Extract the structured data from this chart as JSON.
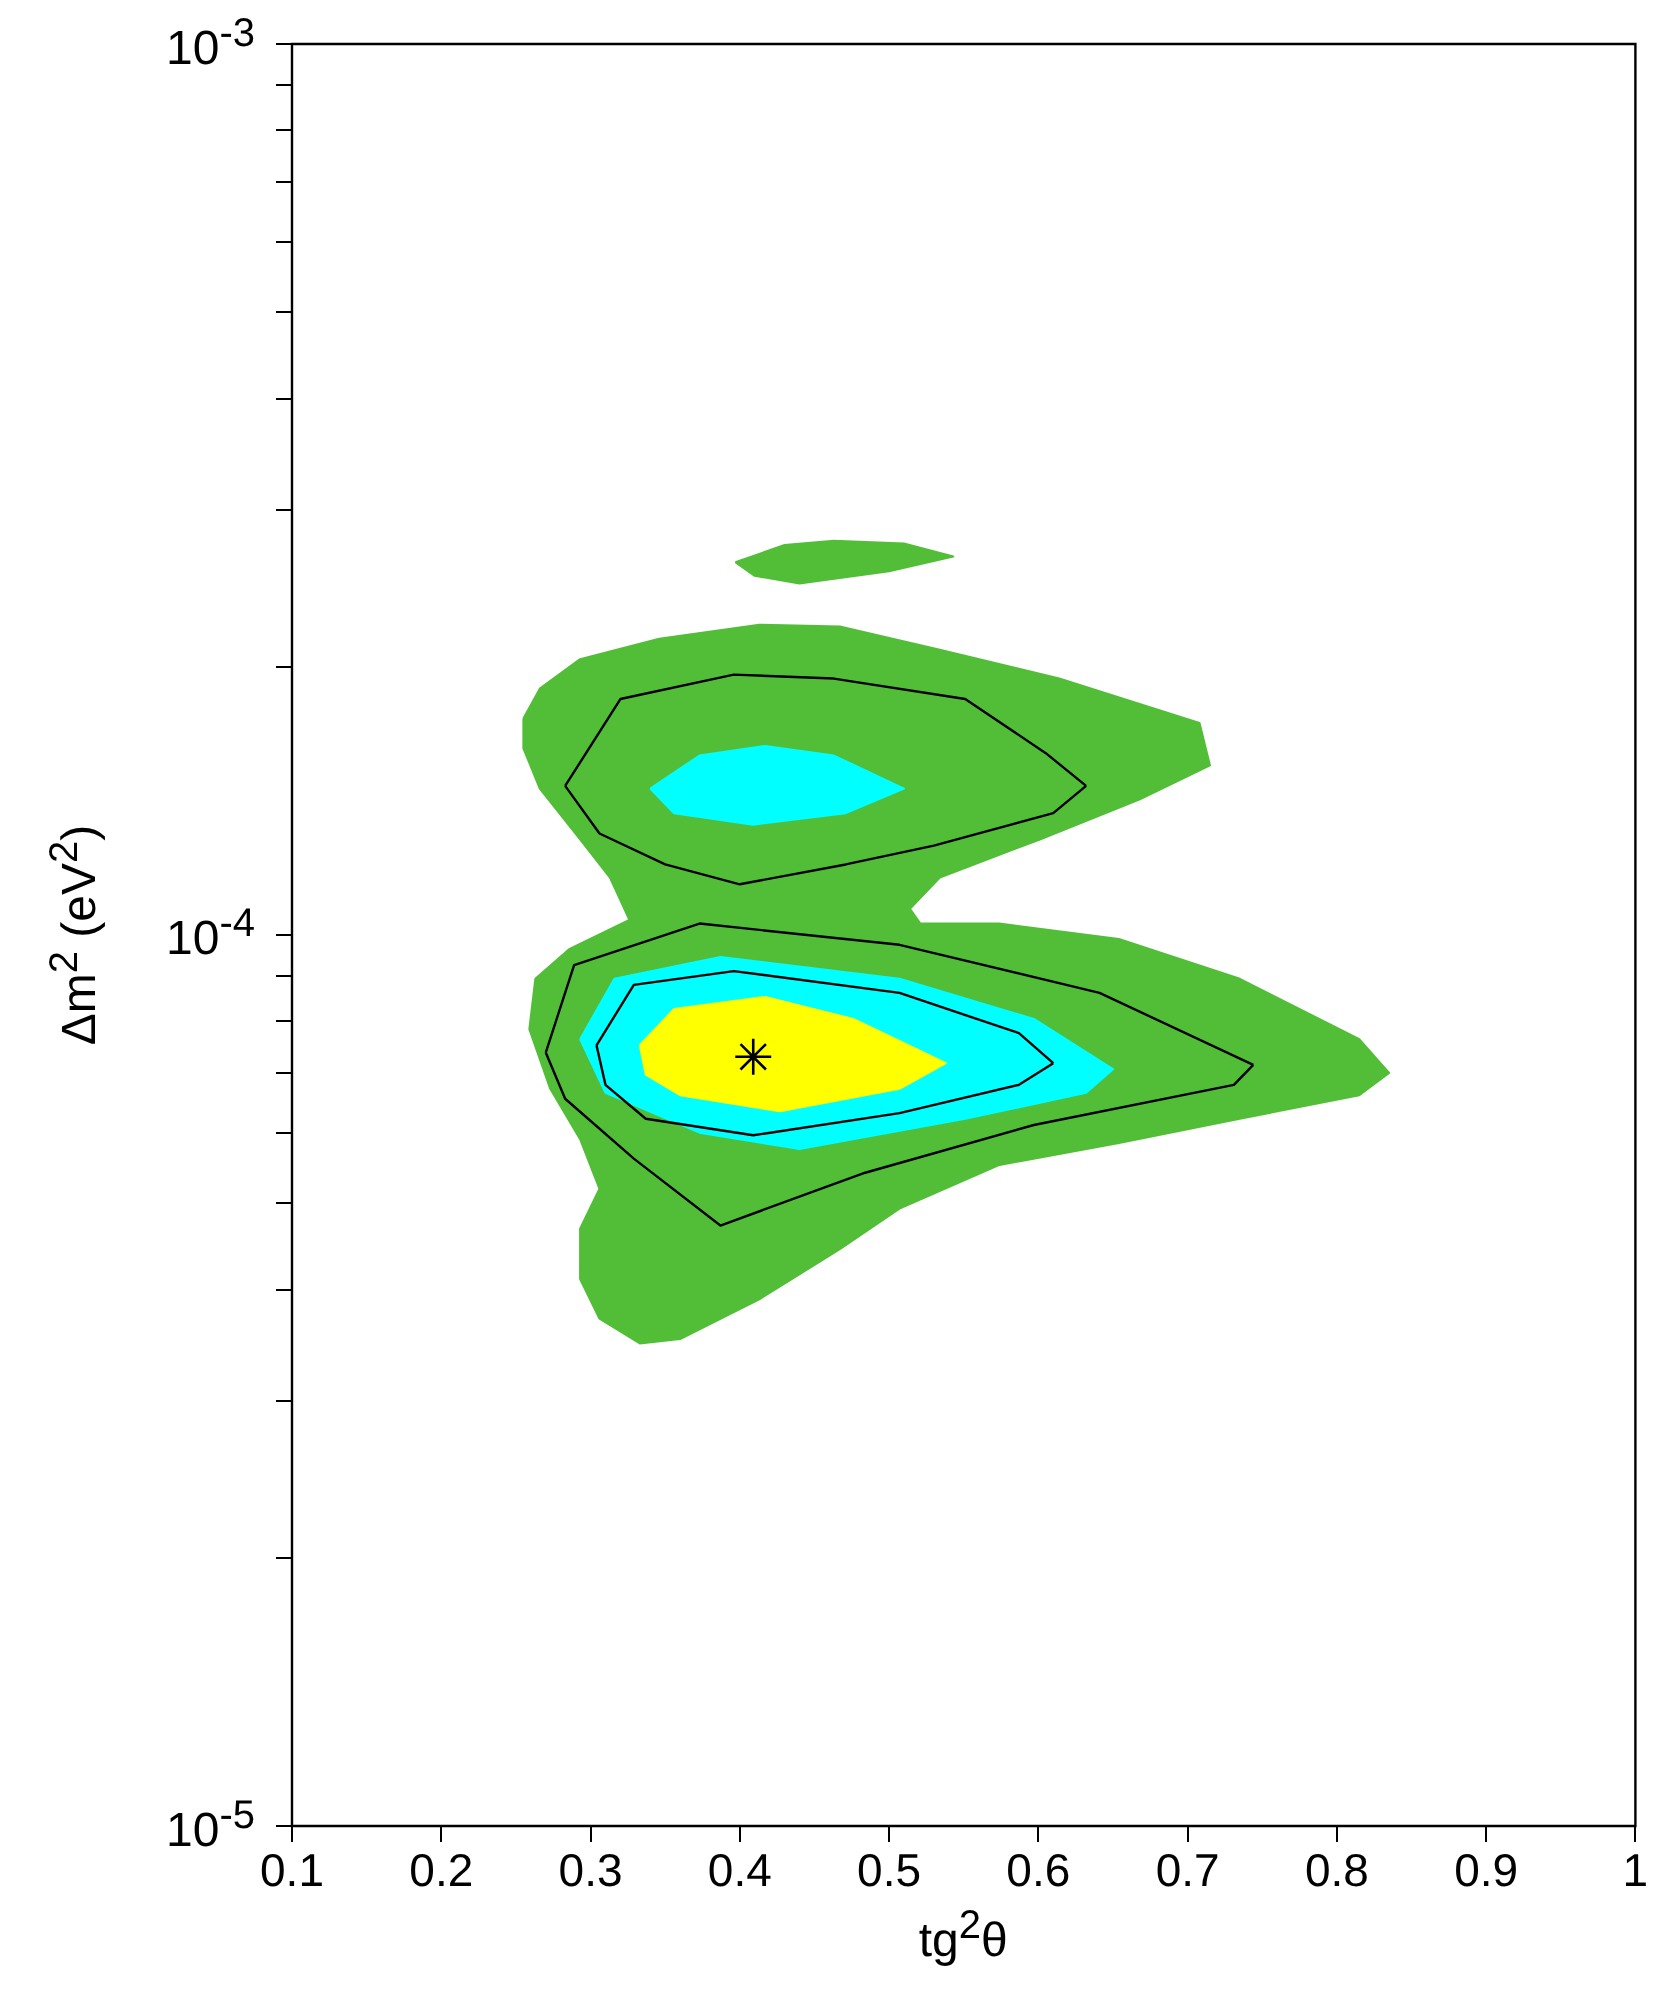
{
  "chart_data": {
    "type": "area",
    "xlabel": "tg$^{2}$θ",
    "ylabel": "Δm$^{2}$ (eV$^{2}$)",
    "log": "y",
    "grid": false,
    "legend": false,
    "xlim": [
      0.1,
      1
    ],
    "xticks": [
      0.1,
      0.2,
      0.3,
      0.4,
      0.5,
      0.6,
      0.7,
      0.8,
      0.9,
      1
    ],
    "ylim": [
      1e-05,
      0.001
    ],
    "yticks": [
      {
        "value": 1e-05,
        "label": "10$^{-5}$"
      },
      {
        "value": 2e-05,
        "label": null
      },
      {
        "value": 3e-05,
        "label": null
      },
      {
        "value": 4e-05,
        "label": null
      },
      {
        "value": 5e-05,
        "label": null
      },
      {
        "value": 6e-05,
        "label": null
      },
      {
        "value": 7e-05,
        "label": null
      },
      {
        "value": 8e-05,
        "label": null
      },
      {
        "value": 9e-05,
        "label": null
      },
      {
        "value": 0.0001,
        "label": "10$^{-4}$"
      },
      {
        "value": 0.0002,
        "label": null
      },
      {
        "value": 0.0003,
        "label": null
      },
      {
        "value": 0.0004,
        "label": null
      },
      {
        "value": 0.0005,
        "label": null
      },
      {
        "value": 0.0006,
        "label": null
      },
      {
        "value": 0.0007,
        "label": null
      },
      {
        "value": 0.0008,
        "label": null
      },
      {
        "value": 0.0009,
        "label": null
      },
      {
        "value": 0.001,
        "label": "10$^{-3}$"
      }
    ],
    "series": [
      {
        "color": "#52be38",
        "x": [
          0.255,
          0.266,
          0.293,
          0.346,
          0.413,
          0.467,
          0.534,
          0.614,
          0.708,
          0.715,
          0.668,
          0.601,
          0.534,
          0.514,
          0.521,
          0.574,
          0.654,
          0.735,
          0.815,
          0.835,
          0.815,
          0.735,
          0.654,
          0.574,
          0.507,
          0.467,
          0.413,
          0.36,
          0.333,
          0.306,
          0.293,
          0.293,
          0.306,
          0.293,
          0.273,
          0.259,
          0.263,
          0.286,
          0.326,
          0.313,
          0.293,
          0.266,
          0.255,
          0.255
        ],
        "values": [
          0.000175,
          0.000189,
          0.000204,
          0.000215,
          0.000223,
          0.000222,
          0.000209,
          0.000194,
          0.000173,
          0.000155,
          0.000142,
          0.000128,
          0.000116,
          0.000107,
          0.000103,
          0.000103,
          9.9e-05,
          8.93e-05,
          7.64e-05,
          7e-05,
          6.61e-05,
          6.22e-05,
          5.84e-05,
          5.52e-05,
          4.93e-05,
          4.44e-05,
          3.9e-05,
          3.52e-05,
          3.48e-05,
          3.71e-05,
          4.11e-05,
          4.68e-05,
          5.19e-05,
          5.9e-05,
          6.72e-05,
          7.84e-05,
          8.93e-05,
          9.65e-05,
          0.000104,
          0.000116,
          0.000128,
          0.000146,
          0.000162,
          0.000175
        ]
      },
      {
        "color": "#52be38",
        "x": [
          0.397,
          0.43,
          0.463,
          0.51,
          0.543,
          0.5,
          0.44,
          0.41,
          0.397
        ],
        "values": [
          0.000262,
          0.000274,
          0.000277,
          0.000275,
          0.000266,
          0.000256,
          0.000248,
          0.000253,
          0.000262
        ]
      },
      {
        "type": "line",
        "color": "#000000",
        "x": [
          0.283,
          0.32,
          0.396,
          0.463,
          0.551,
          0.605,
          0.632
        ],
        "values": [
          0.000147,
          0.000184,
          0.000196,
          0.000194,
          0.000184,
          0.00016,
          0.000147
        ]
      },
      {
        "type": "line",
        "color": "#000000",
        "x": [
          0.283,
          0.306,
          0.35,
          0.4,
          0.471,
          0.53,
          0.61,
          0.632
        ],
        "values": [
          0.000147,
          0.00013,
          0.00012,
          0.000114,
          0.00012,
          0.000126,
          0.000137,
          0.000147
        ]
      },
      {
        "type": "line",
        "color": "#000000",
        "x": [
          0.27,
          0.289,
          0.373,
          0.507,
          0.641,
          0.744
        ],
        "values": [
          7.38e-05,
          9.25e-05,
          0.000103,
          9.75e-05,
          8.61e-05,
          7.15e-05
        ]
      },
      {
        "type": "line",
        "color": "#000000",
        "x": [
          0.27,
          0.283,
          0.329,
          0.387,
          0.484,
          0.597,
          0.731,
          0.744
        ],
        "values": [
          7.38e-05,
          6.55e-05,
          5.61e-05,
          4.72e-05,
          5.41e-05,
          6.12e-05,
          6.79e-05,
          7.15e-05
        ]
      },
      {
        "color": "#00ffff",
        "x": [
          0.34,
          0.373,
          0.417,
          0.463,
          0.51,
          0.471,
          0.409,
          0.356,
          0.34
        ],
        "values": [
          0.000146,
          0.000159,
          0.000163,
          0.000159,
          0.000146,
          0.000137,
          0.000133,
          0.000137,
          0.000146
        ]
      },
      {
        "color": "#00ffff",
        "x": [
          0.293,
          0.316,
          0.387,
          0.507,
          0.597,
          0.65,
          0.632,
          0.551,
          0.44,
          0.373,
          0.31,
          0.293
        ],
        "values": [
          7.64e-05,
          8.93e-05,
          9.45e-05,
          8.93e-05,
          8.05e-05,
          7.07e-05,
          6.65e-05,
          6.22e-05,
          5.75e-05,
          6e-05,
          6.65e-05,
          7.64e-05
        ]
      },
      {
        "type": "line",
        "color": "#000000",
        "x": [
          0.304,
          0.329,
          0.396,
          0.507,
          0.587,
          0.61
        ],
        "values": [
          7.52e-05,
          8.79e-05,
          9.11e-05,
          8.61e-05,
          7.76e-05,
          7.18e-05
        ]
      },
      {
        "type": "line",
        "color": "#000000",
        "x": [
          0.304,
          0.31,
          0.337,
          0.409,
          0.507,
          0.587,
          0.61
        ],
        "values": [
          7.52e-05,
          6.79e-05,
          6.22e-05,
          5.96e-05,
          6.31e-05,
          6.79e-05,
          7.18e-05
        ]
      },
      {
        "color": "#ffff00",
        "x": [
          0.333,
          0.356,
          0.417,
          0.476,
          0.538,
          0.507,
          0.427,
          0.36,
          0.337,
          0.333
        ],
        "values": [
          7.52e-05,
          8.26e-05,
          8.52e-05,
          8.05e-05,
          7.18e-05,
          6.72e-05,
          6.34e-05,
          6.61e-05,
          6.97e-05,
          7.52e-05
        ]
      },
      {
        "type": "scatter",
        "color": "#000000",
        "marker": "cross",
        "x": [
          0.409
        ],
        "values": [
          7.3e-05
        ]
      }
    ]
  }
}
